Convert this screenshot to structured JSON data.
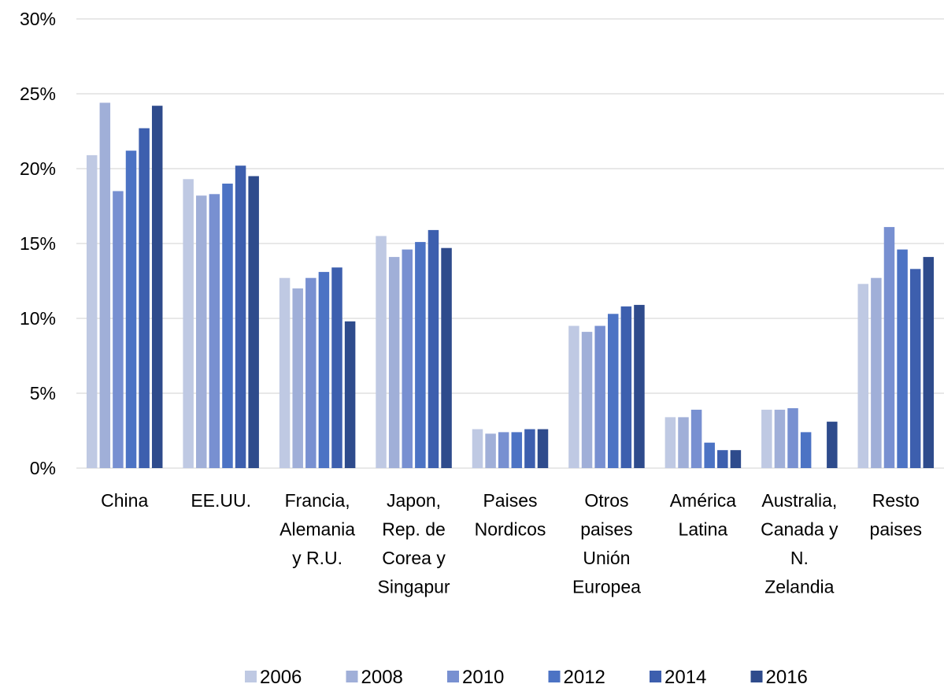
{
  "chart_data": {
    "type": "bar",
    "title": "",
    "xlabel": "",
    "ylabel": "",
    "ylim": [
      0,
      30
    ],
    "y_ticks": [
      "0%",
      "5%",
      "10%",
      "15%",
      "20%",
      "25%",
      "30%"
    ],
    "y_tick_values": [
      0,
      5,
      10,
      15,
      20,
      25,
      30
    ],
    "grid": true,
    "legend_position": "bottom",
    "categories": [
      [
        "China"
      ],
      [
        "EE.UU."
      ],
      [
        "Francia,",
        "Alemania",
        "y R.U."
      ],
      [
        "Japon,",
        "Rep. de",
        "Corea y",
        "Singapur"
      ],
      [
        "Paises",
        "Nordicos"
      ],
      [
        "Otros",
        "paises",
        "Unión",
        "Europea"
      ],
      [
        "América",
        "Latina"
      ],
      [
        "Australia,",
        "Canada y",
        "N.",
        "Zelandia"
      ],
      [
        "Resto",
        "paises"
      ]
    ],
    "series": [
      {
        "name": "2006",
        "color": "#bfc9e3",
        "values": [
          20.9,
          19.3,
          12.7,
          15.5,
          2.6,
          9.5,
          3.4,
          3.9,
          12.3
        ]
      },
      {
        "name": "2008",
        "color": "#a0afd8",
        "values": [
          24.4,
          18.2,
          12.0,
          14.1,
          2.3,
          9.1,
          3.4,
          3.9,
          12.7
        ]
      },
      {
        "name": "2010",
        "color": "#7890d1",
        "values": [
          18.5,
          18.3,
          12.7,
          14.6,
          2.4,
          9.5,
          3.9,
          4.0,
          16.1
        ]
      },
      {
        "name": "2012",
        "color": "#4c73c4",
        "values": [
          21.2,
          19.0,
          13.1,
          15.1,
          2.4,
          10.3,
          1.7,
          2.4,
          14.6
        ]
      },
      {
        "name": "2014",
        "color": "#3d5fae",
        "values": [
          22.7,
          20.2,
          13.4,
          15.9,
          2.6,
          10.8,
          1.2,
          0,
          13.3
        ]
      },
      {
        "name": "2016",
        "color": "#2e4b8c",
        "values": [
          24.2,
          19.5,
          9.8,
          14.7,
          2.6,
          10.9,
          1.2,
          3.1,
          14.1
        ]
      }
    ]
  }
}
